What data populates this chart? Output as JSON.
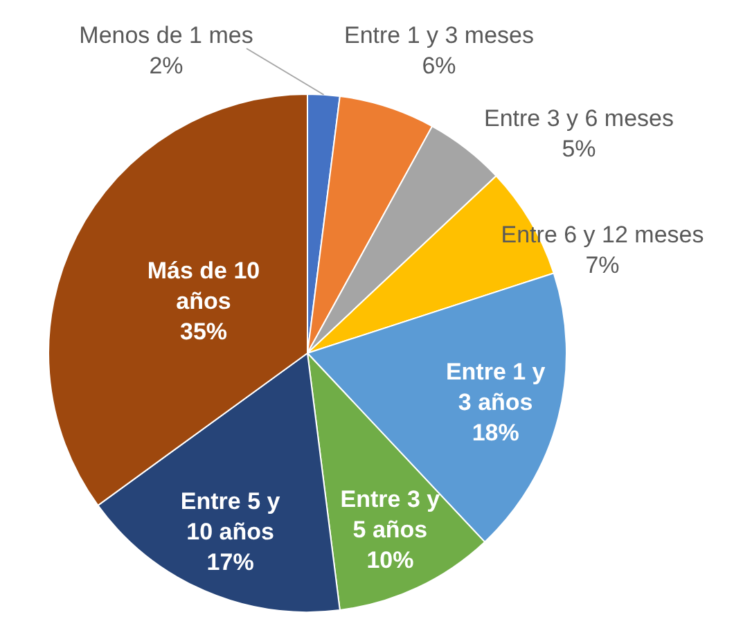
{
  "chart_data": {
    "type": "pie",
    "categories": [
      "Menos de 1 mes",
      "Entre 1 y 3 meses",
      "Entre 3 y 6 meses",
      "Entre 6 y 12 meses",
      "Entre 1 y 3 años",
      "Entre 3 y 5 años",
      "Entre 5 y 10 años",
      "Más de 10 años"
    ],
    "values": [
      2,
      6,
      5,
      7,
      18,
      10,
      17,
      35
    ],
    "value_labels": [
      "2%",
      "6%",
      "5%",
      "7%",
      "18%",
      "10%",
      "17%",
      "35%"
    ],
    "colors": [
      "#4472c4",
      "#ed7d31",
      "#a5a5a5",
      "#ffc000",
      "#5b9bd5",
      "#70ad47",
      "#264478",
      "#9e480e"
    ]
  }
}
